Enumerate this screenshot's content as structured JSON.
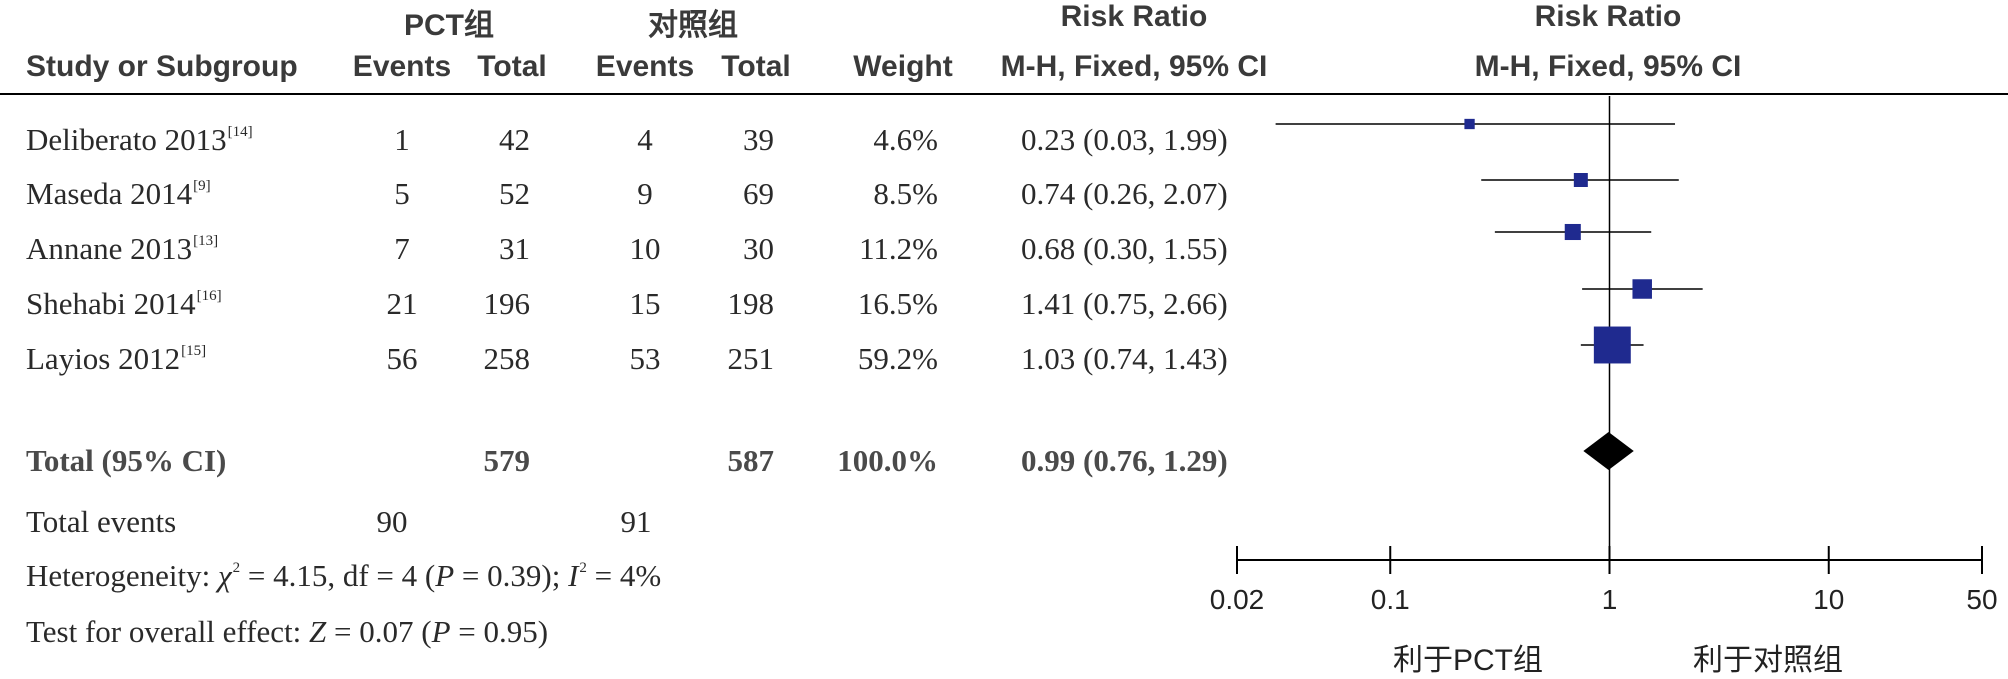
{
  "header": {
    "group_pct": "PCT组",
    "group_control": "对照组",
    "risk_ratio_col": "Risk Ratio",
    "risk_ratio_plot": "Risk Ratio",
    "study": "Study or Subgroup",
    "events1": "Events",
    "total1": "Total",
    "events2": "Events",
    "total2": "Total",
    "weight": "Weight",
    "method_col": "M-H, Fixed, 95% CI",
    "method_plot": "M-H, Fixed, 95% CI"
  },
  "studies": [
    {
      "name": "Deliberato 2013",
      "ref": "[14]",
      "e1": "1",
      "t1": "42",
      "e2": "4",
      "t2": "39",
      "weight": "4.6%",
      "ci_text": "0.23 (0.03, 1.99)"
    },
    {
      "name": "Maseda 2014",
      "ref": "[9]",
      "e1": "5",
      "t1": "52",
      "e2": "9",
      "t2": "69",
      "weight": "8.5%",
      "ci_text": "0.74 (0.26, 2.07)"
    },
    {
      "name": "Annane 2013",
      "ref": "[13]",
      "e1": "7",
      "t1": "31",
      "e2": "10",
      "t2": "30",
      "weight": "11.2%",
      "ci_text": "0.68 (0.30, 1.55)"
    },
    {
      "name": "Shehabi 2014",
      "ref": "[16]",
      "e1": "21",
      "t1": "196",
      "e2": "15",
      "t2": "198",
      "weight": "16.5%",
      "ci_text": "1.41 (0.75, 2.66)"
    },
    {
      "name": "Layios 2012",
      "ref": "[15]",
      "e1": "56",
      "t1": "258",
      "e2": "53",
      "t2": "251",
      "weight": "59.2%",
      "ci_text": "1.03 (0.74, 1.43)"
    }
  ],
  "total": {
    "label": "Total (95% CI)",
    "t1": "579",
    "t2": "587",
    "weight": "100.0%",
    "ci_text": "0.99 (0.76, 1.29)"
  },
  "total_events": {
    "label": "Total events",
    "e1": "90",
    "e2": "91"
  },
  "heterogeneity": {
    "prefix": "Heterogeneity: ",
    "chi": "χ",
    "chi_val": " = 4.15, df = 4 (",
    "p": "P",
    "p_val": " = 0.39); ",
    "i": "I",
    "i_val": " = 4%"
  },
  "overall_effect": {
    "prefix": "Test for overall effect: ",
    "z": "Z",
    "z_val": " = 0.07 (",
    "p": "P",
    "p_val": " = 0.95)"
  },
  "axis": {
    "favours_left": "利于PCT组",
    "favours_right": "利于对照组"
  },
  "colors": {
    "marker": "#1f2a8f",
    "diamond": "#000000",
    "line": "#000000"
  },
  "chart_data": {
    "type": "forest",
    "scale": "log",
    "xlim": [
      0.02,
      50
    ],
    "ticks": [
      0.02,
      0.1,
      1,
      10,
      50
    ],
    "tick_labels": [
      "0.02",
      "0.1",
      "1",
      "10",
      "50"
    ],
    "studies": [
      {
        "name": "Deliberato 2013",
        "rr": 0.23,
        "lo": 0.03,
        "hi": 1.99,
        "weight": 4.6
      },
      {
        "name": "Maseda 2014",
        "rr": 0.74,
        "lo": 0.26,
        "hi": 2.07,
        "weight": 8.5
      },
      {
        "name": "Annane 2013",
        "rr": 0.68,
        "lo": 0.3,
        "hi": 1.55,
        "weight": 11.2
      },
      {
        "name": "Shehabi 2014",
        "rr": 1.41,
        "lo": 0.75,
        "hi": 2.66,
        "weight": 16.5
      },
      {
        "name": "Layios 2012",
        "rr": 1.03,
        "lo": 0.74,
        "hi": 1.43,
        "weight": 59.2
      }
    ],
    "pooled": {
      "rr": 0.99,
      "lo": 0.76,
      "hi": 1.29
    }
  }
}
